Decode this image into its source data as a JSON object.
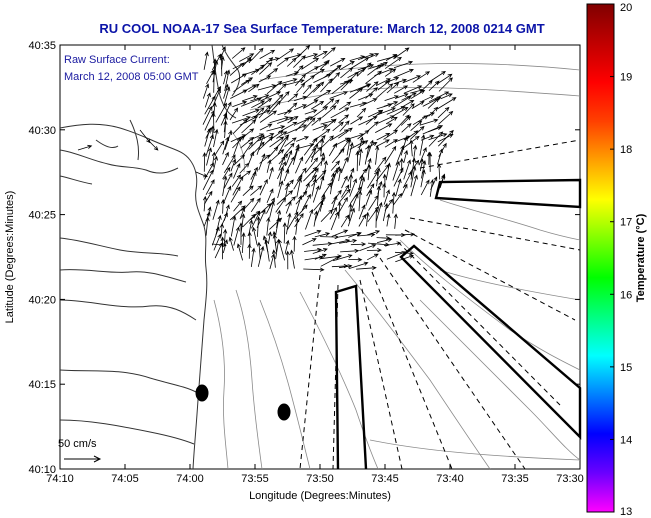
{
  "title": "RU COOL  NOAA-17 Sea Surface Temperature:  March 12, 2008 0214 GMT",
  "annotation": {
    "line1": "Raw Surface Current:",
    "line2": "March 12, 2008 05:00 GMT"
  },
  "scale_label": "50 cm/s",
  "x_axis": {
    "label": "Longitude (Degrees:Minutes)",
    "ticks": [
      "74:10",
      "74:05",
      "74:00",
      "73:55",
      "73:50",
      "73:45",
      "73:40",
      "73:35",
      "73:30"
    ]
  },
  "y_axis": {
    "label": "Latitude (Degrees:Minutes)",
    "ticks": [
      "40:35",
      "40:30",
      "40:25",
      "40:20",
      "40:15",
      "40:10"
    ]
  },
  "colorbar": {
    "label": "Temperature (°C)",
    "ticks": [
      "20",
      "19",
      "18",
      "17",
      "16",
      "15",
      "14",
      "13"
    ],
    "colors": [
      "#ff00ff",
      "#6a00ff",
      "#0000ff",
      "#0080ff",
      "#00ffff",
      "#00ff80",
      "#00ff00",
      "#80ff00",
      "#ffff00",
      "#ffa000",
      "#ff4000",
      "#ff0000",
      "#c00000",
      "#800000"
    ]
  },
  "colors": {
    "title": "#0b14a8",
    "annotation": "#1a1aa0",
    "land_outline": "#333333",
    "contour": "#8a8a8a"
  }
}
